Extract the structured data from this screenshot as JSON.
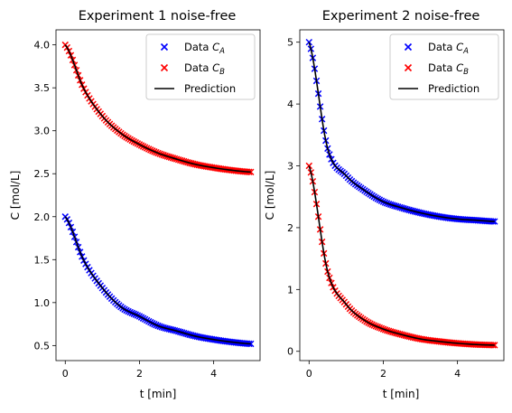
{
  "chart_data": [
    {
      "type": "scatter",
      "title": "Experiment 1 noise-free",
      "xlabel": "t [min]",
      "ylabel": "C [mol/L]",
      "xlim": [
        -0.25,
        5.25
      ],
      "ylim": [
        0.325,
        4.175
      ],
      "xticks": [
        0,
        2,
        4
      ],
      "xtick_labels": [
        "0",
        "2",
        "4"
      ],
      "yticks": [
        0.5,
        1.0,
        1.5,
        2.0,
        2.5,
        3.0,
        3.5,
        4.0
      ],
      "ytick_labels": [
        "0.5",
        "1.0",
        "1.5",
        "2.0",
        "2.5",
        "3.0",
        "3.5",
        "4.0"
      ],
      "legend_position": "top-right",
      "legend": [
        {
          "label": "Data",
          "sub": "A",
          "color": "#0000ff",
          "marker": "x"
        },
        {
          "label": "Data",
          "sub": "B",
          "color": "#ff0000",
          "marker": "x"
        },
        {
          "label": "Prediction",
          "color": "#000000",
          "marker": "line"
        }
      ],
      "series": [
        {
          "name": "Data C_A",
          "color": "#0000ff",
          "marker": "x",
          "x": [
            0,
            0.5,
            1,
            1.5,
            2,
            2.5,
            3,
            3.5,
            4,
            4.5,
            5
          ],
          "y": [
            2.0,
            1.49,
            1.17,
            0.95,
            0.84,
            0.73,
            0.67,
            0.61,
            0.57,
            0.54,
            0.52
          ]
        },
        {
          "name": "Data C_B",
          "color": "#ff0000",
          "marker": "x",
          "x": [
            0,
            0.5,
            1,
            1.5,
            2,
            2.5,
            3,
            3.5,
            4,
            4.5,
            5
          ],
          "y": [
            4.0,
            3.49,
            3.17,
            2.97,
            2.84,
            2.74,
            2.67,
            2.61,
            2.57,
            2.54,
            2.52
          ]
        },
        {
          "name": "Prediction C_A",
          "color": "#000000",
          "marker": "line",
          "x": [
            0,
            0.5,
            1,
            1.5,
            2,
            2.5,
            3,
            3.5,
            4,
            4.5,
            5
          ],
          "y": [
            2.0,
            1.49,
            1.17,
            0.95,
            0.84,
            0.73,
            0.67,
            0.61,
            0.57,
            0.54,
            0.52
          ]
        },
        {
          "name": "Prediction C_B",
          "color": "#000000",
          "marker": "line",
          "x": [
            0,
            0.5,
            1,
            1.5,
            2,
            2.5,
            3,
            3.5,
            4,
            4.5,
            5
          ],
          "y": [
            4.0,
            3.49,
            3.17,
            2.97,
            2.84,
            2.74,
            2.67,
            2.61,
            2.57,
            2.54,
            2.52
          ]
        }
      ]
    },
    {
      "type": "scatter",
      "title": "Experiment 2 noise-free",
      "xlabel": "t [min]",
      "ylabel": "C [mol/L]",
      "xlim": [
        -0.25,
        5.25
      ],
      "ylim": [
        -0.15,
        5.2
      ],
      "xticks": [
        0,
        2,
        4
      ],
      "xtick_labels": [
        "0",
        "2",
        "4"
      ],
      "yticks": [
        0,
        1,
        2,
        3,
        4,
        5
      ],
      "ytick_labels": [
        "0",
        "1",
        "2",
        "3",
        "4",
        "5"
      ],
      "legend_position": "top-right",
      "legend": [
        {
          "label": "Data",
          "sub": "A",
          "color": "#0000ff",
          "marker": "x"
        },
        {
          "label": "Data",
          "sub": "B",
          "color": "#ff0000",
          "marker": "x"
        },
        {
          "label": "Prediction",
          "color": "#000000",
          "marker": "line"
        }
      ],
      "series": [
        {
          "name": "Data C_A",
          "color": "#0000ff",
          "marker": "x",
          "x": [
            0,
            0.5,
            1,
            1.5,
            2,
            2.5,
            3,
            3.5,
            4,
            4.5,
            5
          ],
          "y": [
            5.0,
            3.28,
            2.84,
            2.6,
            2.42,
            2.32,
            2.24,
            2.18,
            2.14,
            2.12,
            2.1
          ]
        },
        {
          "name": "Data C_B",
          "color": "#ff0000",
          "marker": "x",
          "x": [
            0,
            0.5,
            1,
            1.5,
            2,
            2.5,
            3,
            3.5,
            4,
            4.5,
            5
          ],
          "y": [
            3.0,
            1.29,
            0.76,
            0.5,
            0.36,
            0.27,
            0.2,
            0.16,
            0.13,
            0.11,
            0.1
          ]
        },
        {
          "name": "Prediction C_A",
          "color": "#000000",
          "marker": "line",
          "x": [
            0,
            0.5,
            1,
            1.5,
            2,
            2.5,
            3,
            3.5,
            4,
            4.5,
            5
          ],
          "y": [
            5.0,
            3.28,
            2.84,
            2.6,
            2.42,
            2.32,
            2.24,
            2.18,
            2.14,
            2.12,
            2.1
          ]
        },
        {
          "name": "Prediction C_B",
          "color": "#000000",
          "marker": "line",
          "x": [
            0,
            0.5,
            1,
            1.5,
            2,
            2.5,
            3,
            3.5,
            4,
            4.5,
            5
          ],
          "y": [
            3.0,
            1.29,
            0.76,
            0.5,
            0.36,
            0.27,
            0.2,
            0.16,
            0.13,
            0.11,
            0.1
          ]
        }
      ]
    }
  ]
}
